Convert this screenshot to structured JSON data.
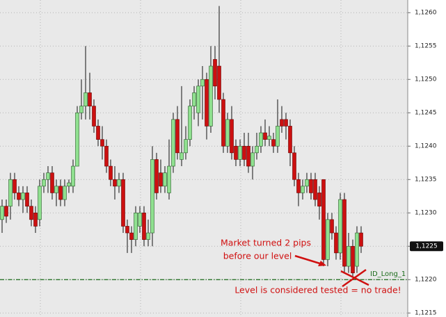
{
  "chart_data": {
    "type": "candlestick",
    "up_color": "#8fe08f",
    "down_color": "#cc1010",
    "grid": true,
    "ylim": [
      1.12144,
      1.12619
    ],
    "yticks": [
      {
        "value": 1.1215,
        "label": "1,1215"
      },
      {
        "value": 1.122,
        "label": "1,1220"
      },
      {
        "value": 1.1225,
        "label": "1,1225"
      },
      {
        "value": 1.123,
        "label": "1,1230"
      },
      {
        "value": 1.1235,
        "label": "1,1235"
      },
      {
        "value": 1.124,
        "label": "1,1240"
      },
      {
        "value": 1.1245,
        "label": "1,1245"
      },
      {
        "value": 1.125,
        "label": "1,1250"
      },
      {
        "value": 1.1255,
        "label": "1,1255"
      },
      {
        "value": 1.126,
        "label": "1,1260"
      }
    ],
    "open": [
      1.1229,
      1.1231,
      1.1231,
      1.1235,
      1.1233,
      1.1232,
      1.1233,
      1.1231,
      1.123,
      1.1229,
      1.1234,
      1.1235,
      1.1236,
      1.1233,
      1.1234,
      1.1232,
      1.1234,
      1.1234,
      1.1237,
      1.1245,
      1.1246,
      1.1248,
      1.1246,
      1.1243,
      1.1241,
      1.124,
      1.1237,
      1.1235,
      1.1234,
      1.1235,
      1.1228,
      1.1227,
      1.1226,
      1.1228,
      1.123,
      1.1226,
      1.1227,
      1.1238,
      1.1236,
      1.1234,
      1.1233,
      1.1237,
      1.1244,
      1.1238,
      1.1239,
      1.1241,
      1.1246,
      1.1245,
      1.1249,
      1.125,
      1.1243,
      1.1253,
      1.1252,
      1.1247,
      1.124,
      1.1244,
      1.124,
      1.1238,
      1.124,
      1.124,
      1.1237,
      1.1239,
      1.124,
      1.1242,
      1.1241,
      1.1241,
      1.124,
      1.1244,
      1.1244,
      1.1243,
      1.1239,
      1.1235,
      1.1233,
      1.1234,
      1.1235,
      1.1235,
      1.1233,
      1.1235,
      1.1223,
      1.1229,
      1.1227,
      1.1224,
      1.1232,
      1.1222,
      1.1225,
      1.1222,
      1.1227
    ],
    "high": [
      1.1232,
      1.1232,
      1.1236,
      1.1236,
      1.1234,
      1.1234,
      1.1234,
      1.1232,
      1.1231,
      1.1235,
      1.1236,
      1.1237,
      1.1237,
      1.1235,
      1.1235,
      1.1235,
      1.1235,
      1.1238,
      1.1246,
      1.125,
      1.1255,
      1.1251,
      1.1247,
      1.1244,
      1.1243,
      1.1241,
      1.1238,
      1.1237,
      1.1236,
      1.1236,
      1.1229,
      1.1228,
      1.1231,
      1.1231,
      1.1231,
      1.1229,
      1.124,
      1.1239,
      1.1238,
      1.1237,
      1.1241,
      1.1245,
      1.1246,
      1.1249,
      1.1243,
      1.1247,
      1.1249,
      1.125,
      1.1252,
      1.1251,
      1.1255,
      1.1255,
      1.1261,
      1.1248,
      1.1245,
      1.1246,
      1.1241,
      1.1241,
      1.1242,
      1.1242,
      1.124,
      1.1242,
      1.1243,
      1.1244,
      1.1243,
      1.1242,
      1.1247,
      1.1246,
      1.1245,
      1.1244,
      1.124,
      1.1236,
      1.1235,
      1.1236,
      1.1236,
      1.1236,
      1.1234,
      1.1235,
      1.123,
      1.123,
      1.1228,
      1.1233,
      1.1233,
      1.1227,
      1.1226,
      1.1228,
      1.1228
    ],
    "low": [
      1.1227,
      1.12285,
      1.1229,
      1.1232,
      1.1231,
      1.123,
      1.123,
      1.1228,
      1.1227,
      1.1228,
      1.1233,
      1.1233,
      1.1232,
      1.1231,
      1.1231,
      1.1231,
      1.1233,
      1.1233,
      1.1237,
      1.1244,
      1.1244,
      1.1244,
      1.1242,
      1.124,
      1.1238,
      1.1236,
      1.1234,
      1.1232,
      1.1233,
      1.1227,
      1.1224,
      1.1224,
      1.1225,
      1.1227,
      1.1225,
      1.1225,
      1.1225,
      1.1232,
      1.1233,
      1.1233,
      1.1232,
      1.1236,
      1.1238,
      1.1237,
      1.1238,
      1.124,
      1.1244,
      1.1243,
      1.1244,
      1.1241,
      1.1242,
      1.1247,
      1.1245,
      1.1239,
      1.1239,
      1.1238,
      1.1237,
      1.1237,
      1.1237,
      1.1236,
      1.1235,
      1.1238,
      1.1239,
      1.124,
      1.124,
      1.1239,
      1.1239,
      1.1242,
      1.1241,
      1.1237,
      1.1234,
      1.1231,
      1.1232,
      1.1233,
      1.1232,
      1.1231,
      1.1229,
      1.1222,
      1.1222,
      1.1226,
      1.1223,
      1.1223,
      1.1221,
      1.1221,
      1.12205,
      1.1221,
      1.1224
    ],
    "close": [
      1.1231,
      1.12295,
      1.1235,
      1.1233,
      1.1232,
      1.1233,
      1.1231,
      1.1229,
      1.1228,
      1.1234,
      1.1235,
      1.1236,
      1.1233,
      1.1234,
      1.1232,
      1.1234,
      1.12345,
      1.1237,
      1.1245,
      1.1246,
      1.1248,
      1.1246,
      1.1243,
      1.1241,
      1.124,
      1.1237,
      1.1235,
      1.1234,
      1.1235,
      1.1228,
      1.1227,
      1.1226,
      1.123,
      1.123,
      1.1226,
      1.1227,
      1.1238,
      1.1233,
      1.1234,
      1.1236,
      1.1237,
      1.1244,
      1.1239,
      1.1239,
      1.1241,
      1.1246,
      1.1248,
      1.1249,
      1.125,
      1.1243,
      1.1252,
      1.1249,
      1.1247,
      1.124,
      1.1244,
      1.1239,
      1.1238,
      1.124,
      1.1238,
      1.1237,
      1.1239,
      1.124,
      1.1242,
      1.1241,
      1.12415,
      1.124,
      1.1243,
      1.1243,
      1.1243,
      1.1239,
      1.1235,
      1.1233,
      1.1234,
      1.1235,
      1.1233,
      1.1232,
      1.1231,
      1.1223,
      1.1229,
      1.1227,
      1.1224,
      1.1232,
      1.1222,
      1.1225,
      1.1221,
      1.1227,
      1.1225
    ],
    "last_price": {
      "value": 1.1225,
      "label": "1,1225"
    },
    "level": {
      "name": "ID_Long_1",
      "value": 1.122,
      "color": "#1a6b1a"
    },
    "annotations": [
      "Market turned 2 pips",
      "before our level",
      "Level is considered tested = no trade!"
    ],
    "annotation_color": "#d01010"
  }
}
